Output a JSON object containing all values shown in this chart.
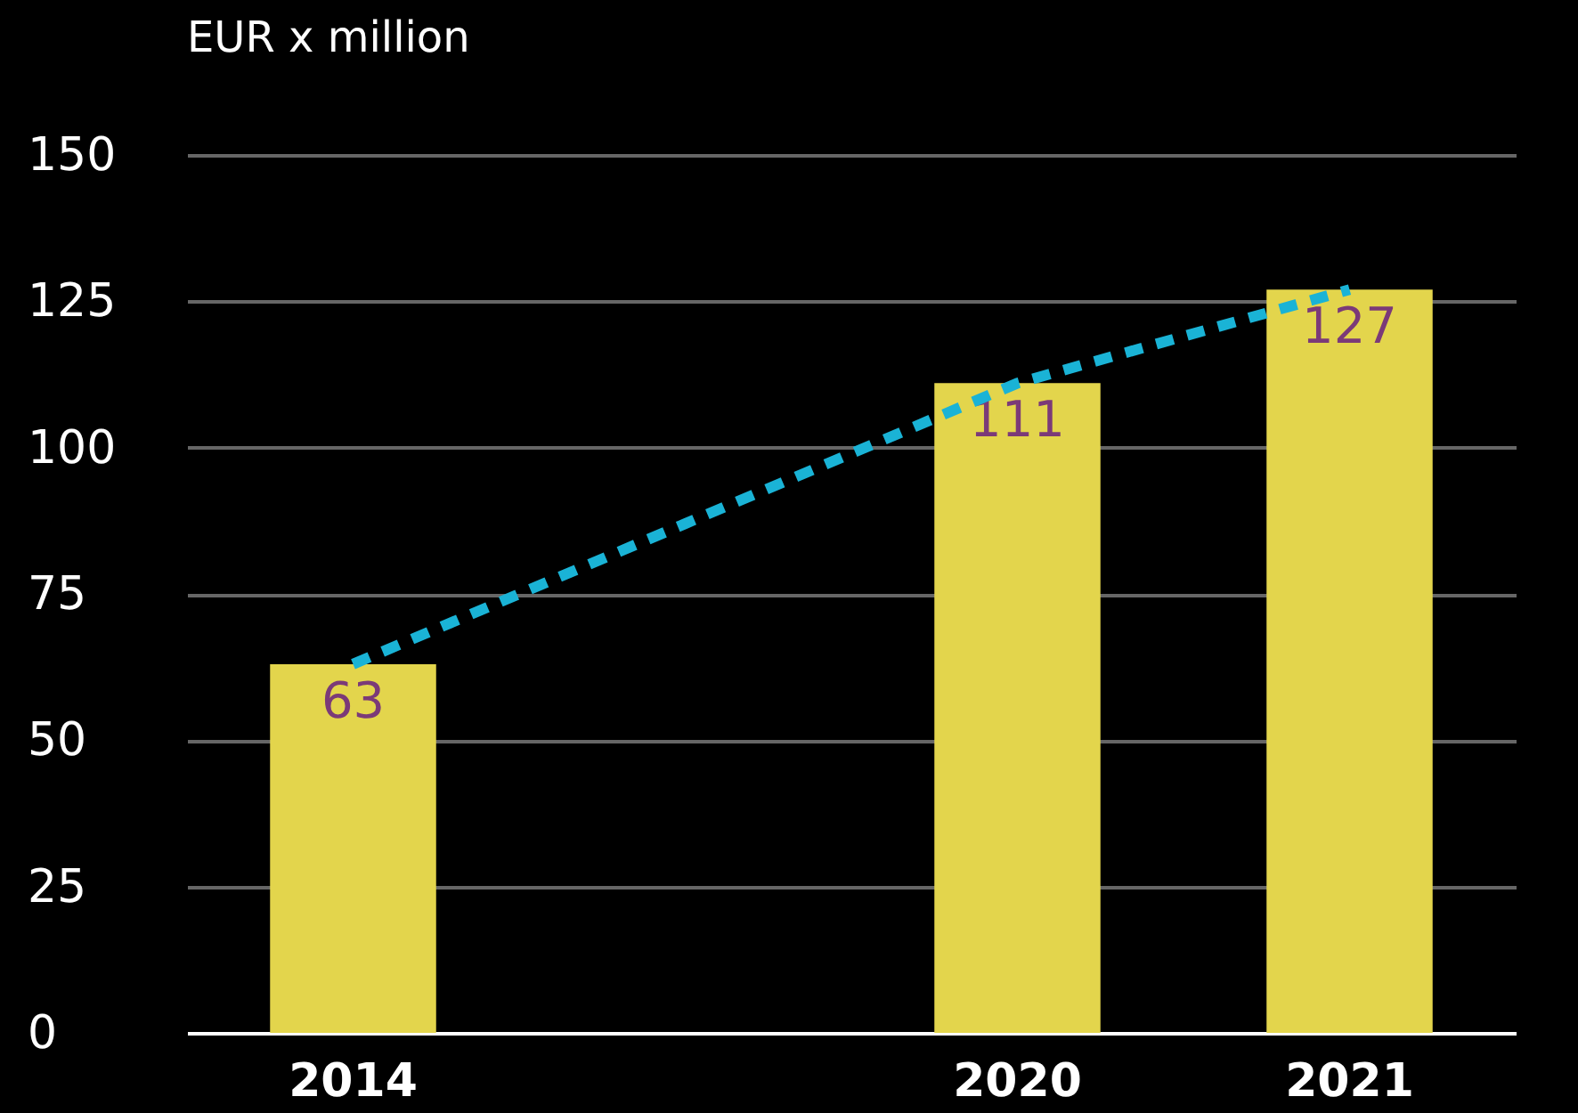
{
  "chart_data": {
    "type": "bar",
    "ylabel": "EUR x million",
    "categories": [
      "2014",
      null,
      "2020",
      "2021"
    ],
    "series": [
      {
        "color": "#e3d54c",
        "values": [
          63,
          null,
          111,
          127
        ],
        "value_labels": [
          "63",
          null,
          "111",
          "127"
        ]
      },
      {
        "type": "line",
        "color": "#1ab3d6",
        "values": [
          63,
          87,
          111,
          127
        ],
        "line_style": "dashed"
      }
    ],
    "ylim": [
      0,
      150
    ],
    "yticks": [
      0,
      25,
      50,
      75,
      100,
      125,
      150
    ],
    "grid": "y"
  }
}
